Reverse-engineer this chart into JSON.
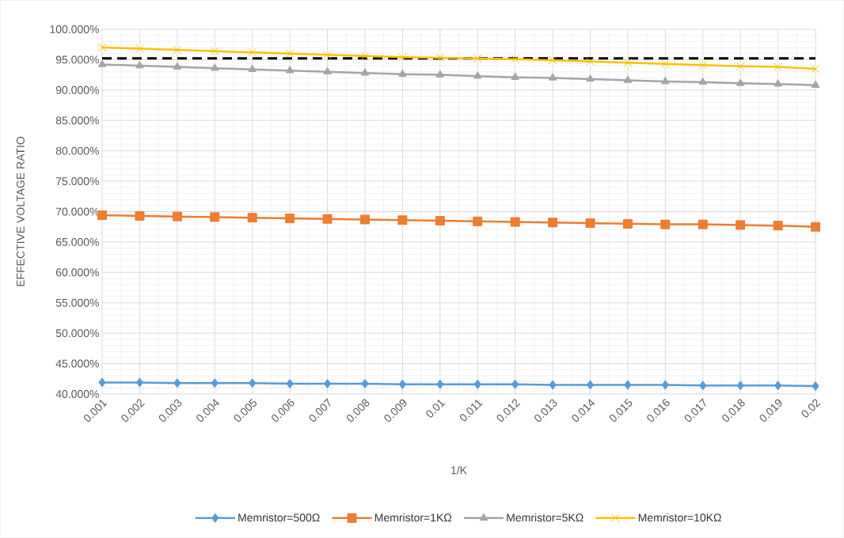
{
  "chart_data": {
    "type": "line",
    "xlabel": "1/K",
    "ylabel": "EFFECTIVE VOLTAGE RATIO",
    "categories": [
      "0.001",
      "0.002",
      "0.003",
      "0.004",
      "0.005",
      "0.006",
      "0.007",
      "0.008",
      "0.009",
      "0.01",
      "0.011",
      "0.012",
      "0.013",
      "0.014",
      "0.015",
      "0.016",
      "0.017",
      "0.018",
      "0.019",
      "0.02"
    ],
    "series": [
      {
        "name": "Memristor=500Ω",
        "color": "#5b9bd5",
        "marker": "diamond",
        "values": [
          41.9,
          41.9,
          41.8,
          41.8,
          41.8,
          41.7,
          41.7,
          41.7,
          41.6,
          41.6,
          41.6,
          41.6,
          41.5,
          41.5,
          41.5,
          41.5,
          41.4,
          41.4,
          41.4,
          41.3
        ]
      },
      {
        "name": "Memristor=1KΩ",
        "color": "#ed7d31",
        "marker": "square",
        "values": [
          69.4,
          69.3,
          69.2,
          69.1,
          69.0,
          68.9,
          68.8,
          68.7,
          68.6,
          68.5,
          68.4,
          68.3,
          68.2,
          68.1,
          68.0,
          67.9,
          67.9,
          67.8,
          67.7,
          67.5
        ]
      },
      {
        "name": "Memristor=5KΩ",
        "color": "#a5a5a5",
        "marker": "triangle",
        "values": [
          94.2,
          94.0,
          93.8,
          93.6,
          93.4,
          93.2,
          93.0,
          92.8,
          92.6,
          92.5,
          92.3,
          92.1,
          92.0,
          91.8,
          91.6,
          91.4,
          91.3,
          91.1,
          91.0,
          90.8
        ]
      },
      {
        "name": "Memristor=10KΩ",
        "color": "#ffc000",
        "marker": "cross",
        "values": [
          97.0,
          96.8,
          96.6,
          96.4,
          96.2,
          96.0,
          95.8,
          95.6,
          95.4,
          95.3,
          95.2,
          95.1,
          94.9,
          94.7,
          94.5,
          94.3,
          94.1,
          93.9,
          93.8,
          93.5
        ]
      }
    ],
    "ylim": [
      40,
      100
    ],
    "yticks": [
      {
        "value": 40,
        "label": "40.000%"
      },
      {
        "value": 45,
        "label": "45.000%"
      },
      {
        "value": 50,
        "label": "50.000%"
      },
      {
        "value": 55,
        "label": "55.000%"
      },
      {
        "value": 60,
        "label": "60.000%"
      },
      {
        "value": 65,
        "label": "65.000%"
      },
      {
        "value": 70,
        "label": "70.000%"
      },
      {
        "value": 75,
        "label": "75.000%"
      },
      {
        "value": 80,
        "label": "80.000%"
      },
      {
        "value": 85,
        "label": "85.000%"
      },
      {
        "value": 90,
        "label": "90.000%"
      },
      {
        "value": 95,
        "label": "95.000%"
      },
      {
        "value": 100,
        "label": "100.000%"
      }
    ],
    "ref_lines": [
      {
        "axis": "y",
        "value": 95.2,
        "color": "#000000",
        "line_style": "dashed"
      }
    ],
    "grid": true,
    "legend": "bottom",
    "line_style": "solid"
  }
}
